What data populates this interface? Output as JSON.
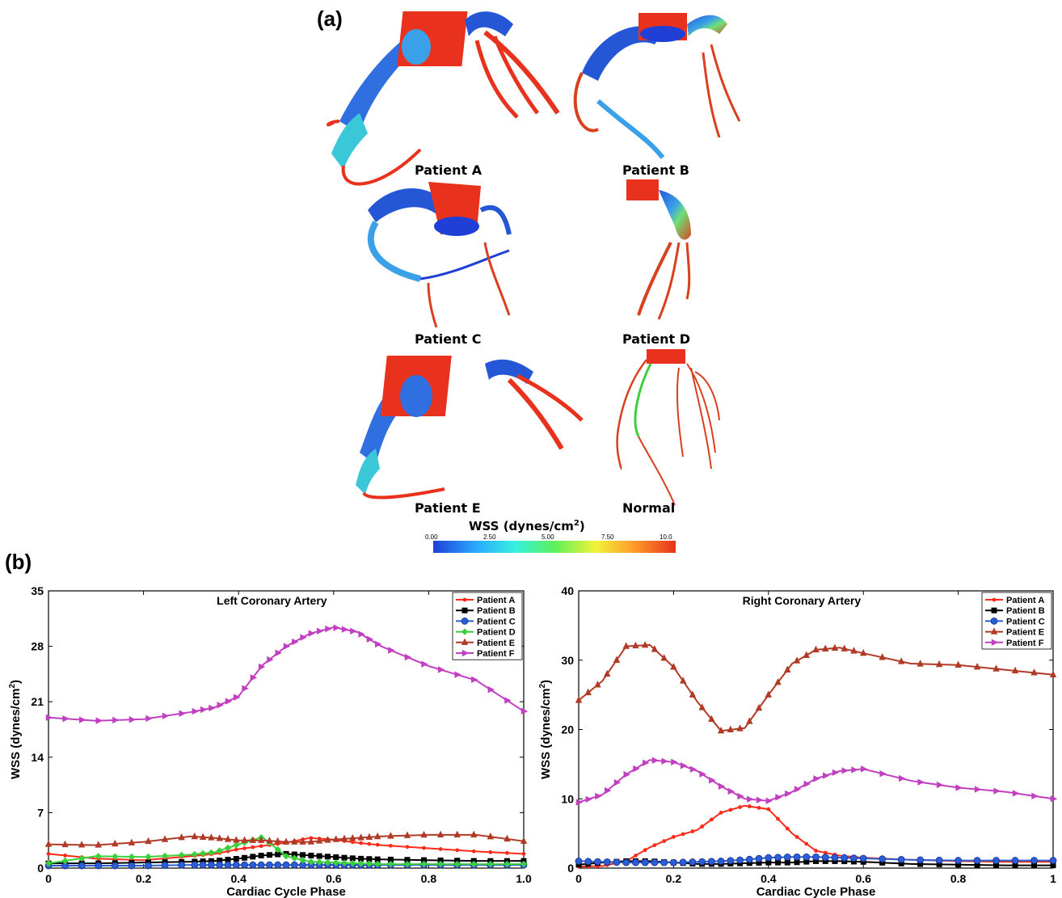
{
  "panel_a": {
    "label": "(a)",
    "models": [
      {
        "caption": "Patient A"
      },
      {
        "caption": "Patient B"
      },
      {
        "caption": "Patient C"
      },
      {
        "caption": "Patient D"
      },
      {
        "caption": "Patient E"
      },
      {
        "caption": "Normal"
      }
    ],
    "colorbar": {
      "title": "WSS (dynes/cm",
      "title_sup": "2",
      "title_close": ")",
      "ticks": [
        "0.00",
        "2.50",
        "5.00",
        "7.50",
        "10.0"
      ],
      "colors": [
        "#1f3fd6",
        "#2aa6ff",
        "#37f0e0",
        "#5df05a",
        "#f2f23a",
        "#ff9a2a",
        "#e8321e"
      ]
    }
  },
  "panel_b": {
    "label": "(b)"
  },
  "chart_data": [
    {
      "type": "line",
      "title": "Left Coronary Artery",
      "xlabel": "Cardiac Cycle Phase",
      "ylabel": "WSS (dynes/cm",
      "ylabel_sup": "2",
      "ylabel_close": ")",
      "xlim": [
        0,
        1
      ],
      "ylim": [
        0,
        35
      ],
      "xticks": [
        "0",
        "0.2",
        "0.4",
        "0.6",
        "0.8",
        "1.0"
      ],
      "yticks": [
        "0",
        "7",
        "14",
        "21",
        "28",
        "35"
      ],
      "legend_position": "top-right",
      "x": [
        0,
        0.1,
        0.2,
        0.3,
        0.35,
        0.4,
        0.45,
        0.5,
        0.55,
        0.6,
        0.65,
        0.7,
        0.8,
        0.9,
        1.0
      ],
      "series": [
        {
          "name": "Patient A",
          "color": "#ff2a1a",
          "marker": "dot",
          "values": [
            1.8,
            1.2,
            1.0,
            1.5,
            1.8,
            2.4,
            2.8,
            3.2,
            3.8,
            3.6,
            3.2,
            2.9,
            2.5,
            2.1,
            1.8
          ]
        },
        {
          "name": "Patient B",
          "color": "#000000",
          "marker": "square",
          "values": [
            0.6,
            0.6,
            0.7,
            0.8,
            0.9,
            1.2,
            1.6,
            1.8,
            1.6,
            1.4,
            1.2,
            1.1,
            1.0,
            0.9,
            0.9
          ]
        },
        {
          "name": "Patient C",
          "color": "#2a5ed6",
          "marker": "circle",
          "values": [
            0.3,
            0.3,
            0.3,
            0.4,
            0.4,
            0.4,
            0.4,
            0.4,
            0.4,
            0.4,
            0.4,
            0.4,
            0.4,
            0.4,
            0.4
          ]
        },
        {
          "name": "Patient D",
          "color": "#3ccf3c",
          "marker": "diamond",
          "values": [
            0.6,
            1.5,
            1.4,
            1.7,
            2.0,
            3.0,
            3.9,
            1.5,
            0.8,
            0.7,
            0.6,
            0.5,
            0.5,
            0.5,
            0.5
          ]
        },
        {
          "name": "Patient E",
          "color": "#b03a25",
          "marker": "triangle-up",
          "values": [
            3.0,
            2.9,
            3.3,
            4.0,
            3.8,
            3.5,
            3.5,
            3.3,
            3.3,
            3.6,
            3.8,
            4.0,
            4.2,
            4.2,
            3.4
          ]
        },
        {
          "name": "Patient F",
          "color": "#c13fc1",
          "marker": "triangle-right",
          "values": [
            19.0,
            18.6,
            18.8,
            19.7,
            20.3,
            21.7,
            25.6,
            28.0,
            29.6,
            30.4,
            29.8,
            28.0,
            25.5,
            23.7,
            19.8
          ]
        }
      ]
    },
    {
      "type": "line",
      "title": "Right Coronary Artery",
      "xlabel": "Cardiac Cycle Phase",
      "ylabel": "WSS (dynes/cm",
      "ylabel_sup": "2",
      "ylabel_close": ")",
      "xlim": [
        0,
        1
      ],
      "ylim": [
        0,
        40
      ],
      "xticks": [
        "0",
        "0.2",
        "0.4",
        "0.6",
        "0.8",
        "1"
      ],
      "yticks": [
        "0",
        "10",
        "20",
        "30",
        "40"
      ],
      "legend_position": "top-right",
      "x": [
        0,
        0.05,
        0.1,
        0.15,
        0.2,
        0.25,
        0.3,
        0.35,
        0.4,
        0.45,
        0.5,
        0.55,
        0.6,
        0.7,
        0.8,
        0.9,
        1.0
      ],
      "series": [
        {
          "name": "Patient A",
          "color": "#ff2a1a",
          "marker": "dot",
          "values": [
            0.2,
            0.3,
            1.0,
            3.0,
            4.5,
            5.5,
            8.0,
            9.0,
            8.5,
            5.0,
            2.5,
            1.8,
            1.5,
            1.2,
            1.0,
            0.9,
            0.9
          ]
        },
        {
          "name": "Patient B",
          "color": "#000000",
          "marker": "square",
          "values": [
            0.5,
            0.8,
            1.0,
            1.0,
            0.8,
            0.6,
            0.6,
            0.7,
            0.8,
            0.8,
            1.0,
            1.0,
            0.9,
            0.6,
            0.5,
            0.4,
            0.4
          ]
        },
        {
          "name": "Patient C",
          "color": "#2a5ed6",
          "marker": "circle",
          "values": [
            1.0,
            0.9,
            0.8,
            0.8,
            0.8,
            0.9,
            1.0,
            1.2,
            1.5,
            1.6,
            1.6,
            1.5,
            1.4,
            1.2,
            1.1,
            1.1,
            1.1
          ]
        },
        {
          "name": "Patient E",
          "color": "#b03a25",
          "marker": "triangle-up",
          "values": [
            24.2,
            27.0,
            32.0,
            32.2,
            29.0,
            24.0,
            19.8,
            20.2,
            25.0,
            29.5,
            31.5,
            31.8,
            31.0,
            29.5,
            29.3,
            28.6,
            27.9
          ]
        },
        {
          "name": "Patient F",
          "color": "#c13fc1",
          "marker": "triangle-right",
          "values": [
            9.5,
            10.6,
            13.5,
            15.6,
            15.3,
            14.0,
            11.8,
            10.0,
            9.7,
            11.0,
            12.9,
            14.0,
            14.3,
            12.6,
            11.6,
            11.0,
            10.0
          ]
        }
      ]
    }
  ]
}
